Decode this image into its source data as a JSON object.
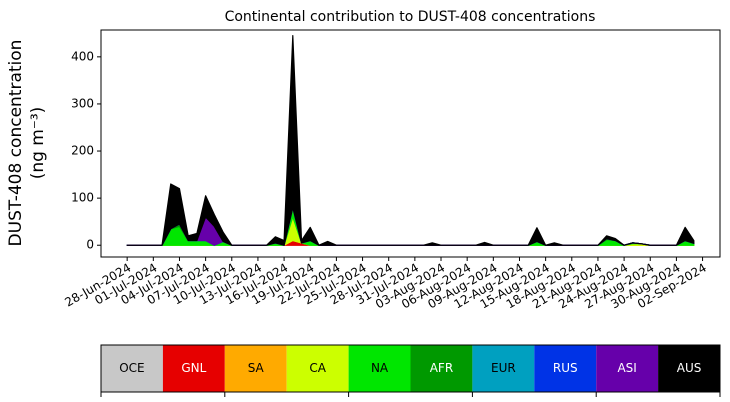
{
  "chart_data": {
    "type": "stacked-area",
    "title": "Continental contribution to DUST-408 concentrations",
    "ylabel": [
      "DUST-408 concentration",
      "(ng m⁻³)"
    ],
    "x": [
      "2024-06-28",
      "2024-06-29",
      "2024-06-30",
      "2024-07-01",
      "2024-07-02",
      "2024-07-03",
      "2024-07-04",
      "2024-07-05",
      "2024-07-06",
      "2024-07-07",
      "2024-07-08",
      "2024-07-09",
      "2024-07-10",
      "2024-07-11",
      "2024-07-12",
      "2024-07-13",
      "2024-07-14",
      "2024-07-15",
      "2024-07-16",
      "2024-07-17",
      "2024-07-18",
      "2024-07-19",
      "2024-07-20",
      "2024-07-21",
      "2024-07-22",
      "2024-07-23",
      "2024-07-24",
      "2024-07-25",
      "2024-07-26",
      "2024-07-27",
      "2024-07-28",
      "2024-07-29",
      "2024-07-30",
      "2024-07-31",
      "2024-08-01",
      "2024-08-02",
      "2024-08-03",
      "2024-08-04",
      "2024-08-05",
      "2024-08-06",
      "2024-08-07",
      "2024-08-08",
      "2024-08-09",
      "2024-08-10",
      "2024-08-11",
      "2024-08-12",
      "2024-08-13",
      "2024-08-14",
      "2024-08-15",
      "2024-08-16",
      "2024-08-17",
      "2024-08-18",
      "2024-08-19",
      "2024-08-20",
      "2024-08-21",
      "2024-08-22",
      "2024-08-23",
      "2024-08-24",
      "2024-08-25",
      "2024-08-26",
      "2024-08-27",
      "2024-08-28",
      "2024-08-29",
      "2024-08-30",
      "2024-08-31",
      "2024-09-01"
    ],
    "xlim": [
      "2024-06-25",
      "2024-09-04"
    ],
    "xticks": [
      {
        "value": "2024-06-28",
        "label": "28-Jun-2024"
      },
      {
        "value": "2024-07-01",
        "label": "01-Jul-2024"
      },
      {
        "value": "2024-07-04",
        "label": "04-Jul-2024"
      },
      {
        "value": "2024-07-07",
        "label": "07-Jul-2024"
      },
      {
        "value": "2024-07-10",
        "label": "10-Jul-2024"
      },
      {
        "value": "2024-07-13",
        "label": "13-Jul-2024"
      },
      {
        "value": "2024-07-16",
        "label": "16-Jul-2024"
      },
      {
        "value": "2024-07-19",
        "label": "19-Jul-2024"
      },
      {
        "value": "2024-07-22",
        "label": "22-Jul-2024"
      },
      {
        "value": "2024-07-25",
        "label": "25-Jul-2024"
      },
      {
        "value": "2024-07-28",
        "label": "28-Jul-2024"
      },
      {
        "value": "2024-07-31",
        "label": "31-Jul-2024"
      },
      {
        "value": "2024-08-03",
        "label": "03-Aug-2024"
      },
      {
        "value": "2024-08-06",
        "label": "06-Aug-2024"
      },
      {
        "value": "2024-08-09",
        "label": "09-Aug-2024"
      },
      {
        "value": "2024-08-12",
        "label": "12-Aug-2024"
      },
      {
        "value": "2024-08-15",
        "label": "15-Aug-2024"
      },
      {
        "value": "2024-08-18",
        "label": "18-Aug-2024"
      },
      {
        "value": "2024-08-21",
        "label": "21-Aug-2024"
      },
      {
        "value": "2024-08-24",
        "label": "24-Aug-2024"
      },
      {
        "value": "2024-08-27",
        "label": "27-Aug-2024"
      },
      {
        "value": "2024-08-30",
        "label": "30-Aug-2024"
      },
      {
        "value": "2024-09-02",
        "label": "02-Sep-2024"
      }
    ],
    "ylim": [
      -25,
      457
    ],
    "yticks": [
      0,
      100,
      200,
      300,
      400
    ],
    "series": [
      {
        "name": "OCE",
        "color": "#c8c8c8",
        "values": [
          0,
          0,
          0,
          0,
          0,
          0,
          0,
          0,
          0,
          0,
          0,
          0,
          0,
          0,
          0,
          0,
          0,
          0,
          0,
          0,
          0,
          0,
          0,
          0,
          0,
          0,
          0,
          0,
          0,
          0,
          0,
          0,
          0,
          0,
          0,
          0,
          0,
          0,
          0,
          0,
          0,
          0,
          0,
          0,
          0,
          0,
          0,
          0,
          0,
          0,
          0,
          0,
          0,
          0,
          0,
          0,
          0,
          0,
          0,
          0,
          0,
          0,
          0,
          0,
          0,
          0
        ]
      },
      {
        "name": "GNL",
        "color": "#e60000",
        "values": [
          0,
          0,
          0,
          0,
          0,
          0,
          0,
          0,
          0,
          0,
          0,
          0,
          0,
          0,
          0,
          0,
          0,
          0,
          0,
          10,
          5,
          0,
          0,
          0,
          0,
          0,
          0,
          0,
          0,
          0,
          0,
          0,
          0,
          0,
          0,
          0,
          0,
          0,
          0,
          0,
          0,
          0,
          0,
          0,
          0,
          0,
          0,
          0,
          0,
          0,
          0,
          0,
          0,
          0,
          0,
          0,
          0,
          0,
          0,
          0,
          0,
          0,
          0,
          0,
          0,
          0
        ]
      },
      {
        "name": "SA",
        "color": "#ffaa00",
        "values": [
          0,
          0,
          0,
          0,
          0,
          0,
          0,
          0,
          0,
          0,
          0,
          0,
          0,
          0,
          0,
          0,
          0,
          0,
          0,
          0,
          0,
          0,
          0,
          0,
          0,
          0,
          0,
          0,
          0,
          0,
          0,
          0,
          0,
          0,
          0,
          0,
          0,
          0,
          0,
          0,
          0,
          0,
          0,
          0,
          0,
          0,
          0,
          0,
          0,
          0,
          0,
          0,
          0,
          0,
          0,
          0,
          0,
          0,
          0,
          0,
          0,
          0,
          0,
          0,
          0,
          0
        ]
      },
      {
        "name": "CA",
        "color": "#ccff00",
        "values": [
          0,
          0,
          0,
          0,
          0,
          0,
          0,
          0,
          0,
          0,
          0,
          0,
          0,
          0,
          0,
          0,
          0,
          0,
          0,
          50,
          0,
          0,
          0,
          0,
          0,
          0,
          0,
          0,
          0,
          0,
          0,
          0,
          0,
          0,
          0,
          0,
          0,
          0,
          0,
          0,
          0,
          0,
          0,
          0,
          0,
          0,
          0,
          0,
          0,
          0,
          0,
          0,
          0,
          0,
          0,
          0,
          0,
          0,
          3,
          3,
          0,
          0,
          0,
          0,
          0,
          0
        ]
      },
      {
        "name": "NA",
        "color": "#00e600",
        "values": [
          0,
          0,
          0,
          0,
          0,
          35,
          40,
          10,
          10,
          10,
          0,
          8,
          0,
          0,
          0,
          0,
          0,
          5,
          0,
          20,
          0,
          10,
          0,
          0,
          0,
          0,
          0,
          0,
          0,
          0,
          0,
          0,
          0,
          0,
          0,
          0,
          0,
          0,
          0,
          0,
          0,
          0,
          0,
          0,
          0,
          0,
          0,
          8,
          0,
          0,
          0,
          0,
          0,
          0,
          0,
          12,
          10,
          0,
          2,
          0,
          0,
          0,
          0,
          0,
          10,
          4
        ]
      },
      {
        "name": "AFR",
        "color": "#009900",
        "values": [
          0,
          0,
          0,
          0,
          0,
          0,
          5,
          0,
          0,
          0,
          0,
          0,
          0,
          0,
          0,
          0,
          0,
          0,
          0,
          0,
          0,
          0,
          0,
          0,
          0,
          0,
          0,
          0,
          0,
          0,
          0,
          0,
          0,
          0,
          0,
          0,
          0,
          0,
          0,
          0,
          0,
          0,
          0,
          0,
          0,
          0,
          0,
          0,
          0,
          0,
          0,
          0,
          0,
          0,
          0,
          2,
          0,
          0,
          0,
          0,
          0,
          0,
          0,
          0,
          0,
          0
        ]
      },
      {
        "name": "EUR",
        "color": "#00a0c0",
        "values": [
          0,
          0,
          0,
          0,
          0,
          0,
          0,
          0,
          0,
          0,
          0,
          0,
          0,
          0,
          0,
          0,
          0,
          0,
          0,
          0,
          0,
          0,
          0,
          0,
          0,
          0,
          0,
          0,
          0,
          0,
          0,
          0,
          0,
          0,
          0,
          0,
          0,
          0,
          0,
          0,
          0,
          0,
          0,
          0,
          0,
          0,
          0,
          0,
          0,
          0,
          0,
          0,
          0,
          0,
          0,
          0,
          0,
          0,
          0,
          0,
          0,
          0,
          0,
          0,
          0,
          0
        ]
      },
      {
        "name": "RUS",
        "color": "#0033e6",
        "values": [
          0,
          0,
          0,
          0,
          0,
          0,
          0,
          0,
          0,
          0,
          0,
          0,
          0,
          0,
          0,
          0,
          0,
          0,
          0,
          0,
          0,
          0,
          0,
          0,
          0,
          0,
          0,
          0,
          0,
          0,
          0,
          0,
          0,
          0,
          0,
          0,
          0,
          0,
          0,
          0,
          0,
          0,
          0,
          0,
          0,
          0,
          0,
          0,
          0,
          0,
          0,
          0,
          0,
          0,
          0,
          0,
          0,
          0,
          0,
          0,
          0,
          0,
          0,
          0,
          0,
          0
        ]
      },
      {
        "name": "ASI",
        "color": "#6600aa",
        "values": [
          0,
          0,
          0,
          0,
          0,
          0,
          0,
          0,
          0,
          50,
          40,
          0,
          0,
          0,
          0,
          0,
          0,
          0,
          0,
          0,
          0,
          0,
          0,
          0,
          0,
          0,
          0,
          0,
          0,
          0,
          0,
          0,
          0,
          0,
          0,
          0,
          0,
          0,
          0,
          0,
          0,
          0,
          0,
          0,
          0,
          0,
          0,
          0,
          0,
          0,
          0,
          0,
          0,
          0,
          0,
          0,
          0,
          0,
          0,
          0,
          0,
          0,
          0,
          0,
          0,
          0
        ]
      },
      {
        "name": "AUS",
        "color": "#000000",
        "values": [
          0,
          0,
          0,
          0,
          0,
          95,
          75,
          10,
          15,
          45,
          25,
          20,
          0,
          0,
          0,
          0,
          0,
          13,
          10,
          365,
          5,
          28,
          0,
          8,
          0,
          0,
          0,
          0,
          0,
          0,
          0,
          0,
          0,
          0,
          0,
          5,
          0,
          0,
          0,
          0,
          0,
          6,
          0,
          0,
          0,
          0,
          0,
          29,
          0,
          5,
          0,
          0,
          0,
          0,
          0,
          6,
          4,
          0,
          0,
          0,
          0,
          0,
          0,
          0,
          28,
          6
        ]
      }
    ]
  }
}
